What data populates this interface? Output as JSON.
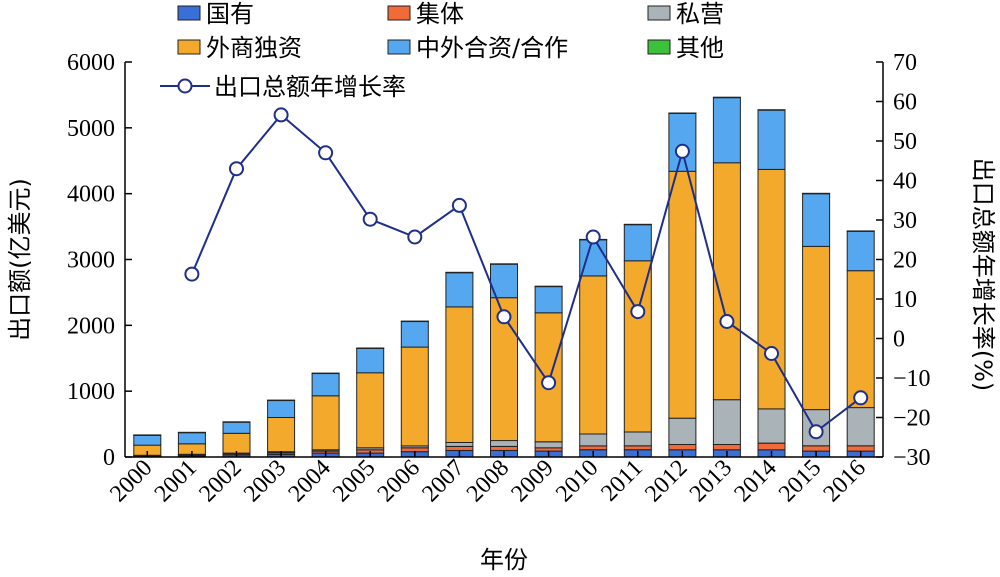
{
  "chart_data": {
    "type": "bar",
    "stacked": true,
    "categories": [
      "2000",
      "2001",
      "2002",
      "2003",
      "2004",
      "2005",
      "2006",
      "2007",
      "2008",
      "2009",
      "2010",
      "2011",
      "2012",
      "2013",
      "2014",
      "2015",
      "2016"
    ],
    "series": [
      {
        "name": "国有",
        "color": "#3a6fd8",
        "values": [
          10,
          15,
          30,
          40,
          60,
          60,
          80,
          100,
          100,
          90,
          110,
          110,
          110,
          110,
          110,
          90,
          90
        ]
      },
      {
        "name": "集体",
        "color": "#f06a3a",
        "values": [
          10,
          15,
          20,
          25,
          30,
          50,
          60,
          60,
          60,
          50,
          60,
          60,
          80,
          80,
          100,
          80,
          80
        ]
      },
      {
        "name": "私营",
        "color": "#aab4b8",
        "values": [
          5,
          10,
          10,
          15,
          20,
          30,
          30,
          60,
          90,
          90,
          180,
          210,
          400,
          680,
          520,
          550,
          580
        ]
      },
      {
        "name": "外商独资",
        "color": "#f3aa2c",
        "values": [
          155,
          160,
          300,
          520,
          820,
          1140,
          1500,
          2060,
          2170,
          1960,
          2400,
          2600,
          3750,
          3600,
          3640,
          2480,
          2080
        ]
      },
      {
        "name": "中外合资/合作",
        "color": "#55a8ef",
        "values": [
          150,
          170,
          170,
          260,
          340,
          370,
          390,
          520,
          510,
          400,
          550,
          550,
          880,
          990,
          900,
          800,
          600
        ]
      },
      {
        "name": "其他",
        "color": "#3cc13a",
        "values": [
          5,
          5,
          5,
          5,
          5,
          5,
          5,
          5,
          5,
          5,
          5,
          5,
          5,
          5,
          5,
          5,
          5
        ]
      }
    ],
    "line_series": {
      "name": "出口总额年增长率",
      "color": "#1e2f8a",
      "values": [
        null,
        16.3,
        43,
        56.6,
        47,
        30.2,
        25.7,
        33.7,
        5.5,
        -11.2,
        25.7,
        6.8,
        47.4,
        4.3,
        -3.8,
        -23.6,
        -15
      ]
    },
    "xlabel": "年份",
    "ylabel": "出口额(亿美元)",
    "y2label": "出口总额年增长率(%)",
    "ylim": [
      0,
      6000
    ],
    "y2lim": [
      -30,
      70
    ],
    "yticks": [
      "0",
      "1000",
      "2000",
      "3000",
      "4000",
      "5000",
      "6000"
    ],
    "y2ticks": [
      "-30",
      "-20",
      "-10",
      "0",
      "10",
      "20",
      "30",
      "40",
      "50",
      "60",
      "70"
    ],
    "legend_position": "top",
    "grid": false
  }
}
